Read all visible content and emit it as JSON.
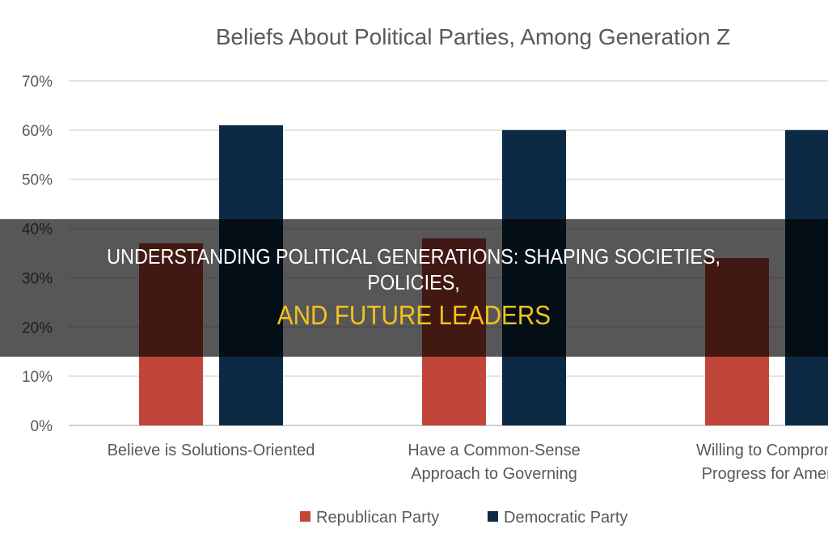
{
  "chart_data": {
    "type": "bar",
    "title": "Beliefs About Political Parties, Among Generation Z",
    "categories": [
      [
        "Believe is Solutions-Oriented"
      ],
      [
        "Have a Common-Sense",
        "Approach to Governing"
      ],
      [
        "Willing to Compromise",
        "Progress for America"
      ]
    ],
    "series": [
      {
        "name": "Republican Party",
        "color": "#c0463a",
        "values": [
          37,
          38,
          34
        ]
      },
      {
        "name": "Democratic Party",
        "color": "#0d2a45",
        "values": [
          61,
          60,
          60
        ]
      }
    ],
    "ylim": [
      0,
      70
    ],
    "yticks": [
      "0%",
      "10%",
      "20%",
      "30%",
      "40%",
      "50%",
      "60%",
      "70%"
    ],
    "grid": true,
    "legend": "bottom"
  },
  "overlay": {
    "line1": "UNDERSTANDING POLITICAL GENERATIONS: SHAPING SOCIETIES,",
    "line2": "POLICIES,",
    "line3": "AND FUTURE LEADERS",
    "accent_color": "#f4c21c"
  }
}
